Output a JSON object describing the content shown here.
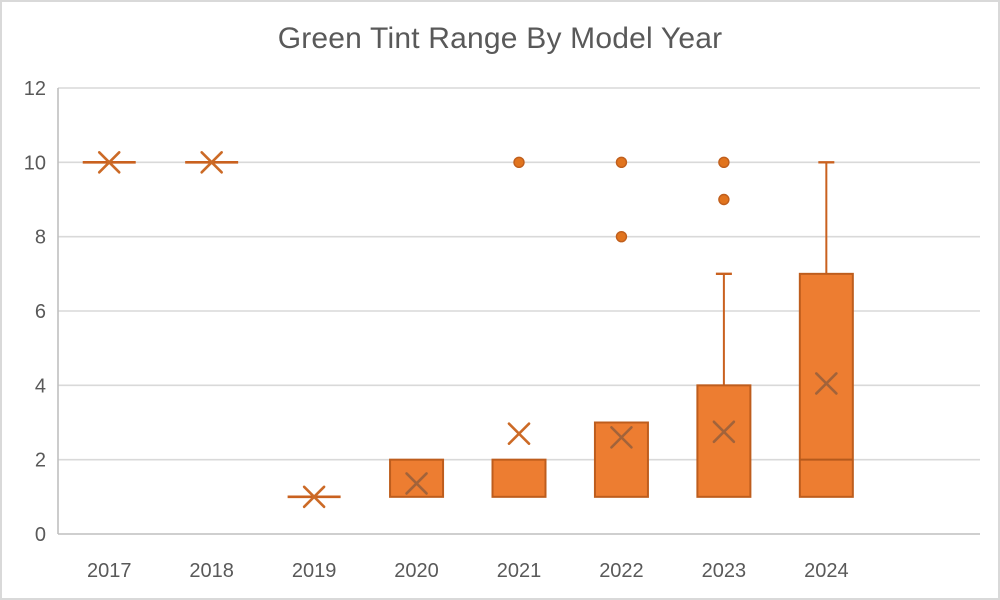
{
  "window": {
    "title": "Green Tint Range By Model Year"
  },
  "palette": {
    "box_fill": "#ED7D31",
    "box_stroke": "#BE5D1D",
    "whisker": "#C9611F",
    "median": "#B55A1C",
    "marker": "#CC6A26",
    "marker_in_box": "#A2633A",
    "outlier_fill": "#E1741E",
    "outlier_stroke": "#C05F1D",
    "gridline": "#D9D9D9",
    "axis_line": "#BFBFBF",
    "text": "#595959",
    "frame_border": "#D9D9D9",
    "background": "#FFFFFF"
  },
  "chart_data": {
    "type": "boxplot",
    "title": "Green Tint Range By Model Year",
    "xlabel": "",
    "ylabel": "",
    "categories": [
      "2017",
      "2018",
      "2019",
      "2020",
      "2021",
      "2022",
      "2023",
      "2024"
    ],
    "ylim": [
      0,
      12
    ],
    "yticks": [
      0,
      2,
      4,
      6,
      8,
      10,
      12
    ],
    "grid": true,
    "legend": "none",
    "series_name": "Green Tint",
    "series": [
      {
        "category": "2017",
        "min": 10,
        "q1": 10,
        "median": 10,
        "q3": 10,
        "max": 10,
        "mean": 10,
        "outliers": []
      },
      {
        "category": "2018",
        "min": 10,
        "q1": 10,
        "median": 10,
        "q3": 10,
        "max": 10,
        "mean": 10,
        "outliers": []
      },
      {
        "category": "2019",
        "min": 1,
        "q1": 1,
        "median": 1,
        "q3": 1,
        "max": 1,
        "mean": 1,
        "outliers": []
      },
      {
        "category": "2020",
        "min": 1,
        "q1": 1,
        "median": 1,
        "q3": 2,
        "max": 2,
        "mean": 1.36,
        "outliers": []
      },
      {
        "category": "2021",
        "min": 1,
        "q1": 1,
        "median": 2,
        "q3": 2,
        "max": 2,
        "mean": 2.7,
        "outliers": [
          10
        ]
      },
      {
        "category": "2022",
        "min": 1,
        "q1": 1,
        "median": 1,
        "q3": 3,
        "max": 3,
        "mean": 2.6,
        "outliers": [
          8,
          10
        ]
      },
      {
        "category": "2023",
        "min": 1,
        "q1": 1,
        "median": 1,
        "q3": 4,
        "max": 7,
        "mean": 2.75,
        "outliers": [
          9,
          10
        ]
      },
      {
        "category": "2024",
        "min": 1,
        "q1": 1,
        "median": 2,
        "q3": 7,
        "max": 10,
        "mean": 4.05,
        "outliers": []
      }
    ]
  }
}
